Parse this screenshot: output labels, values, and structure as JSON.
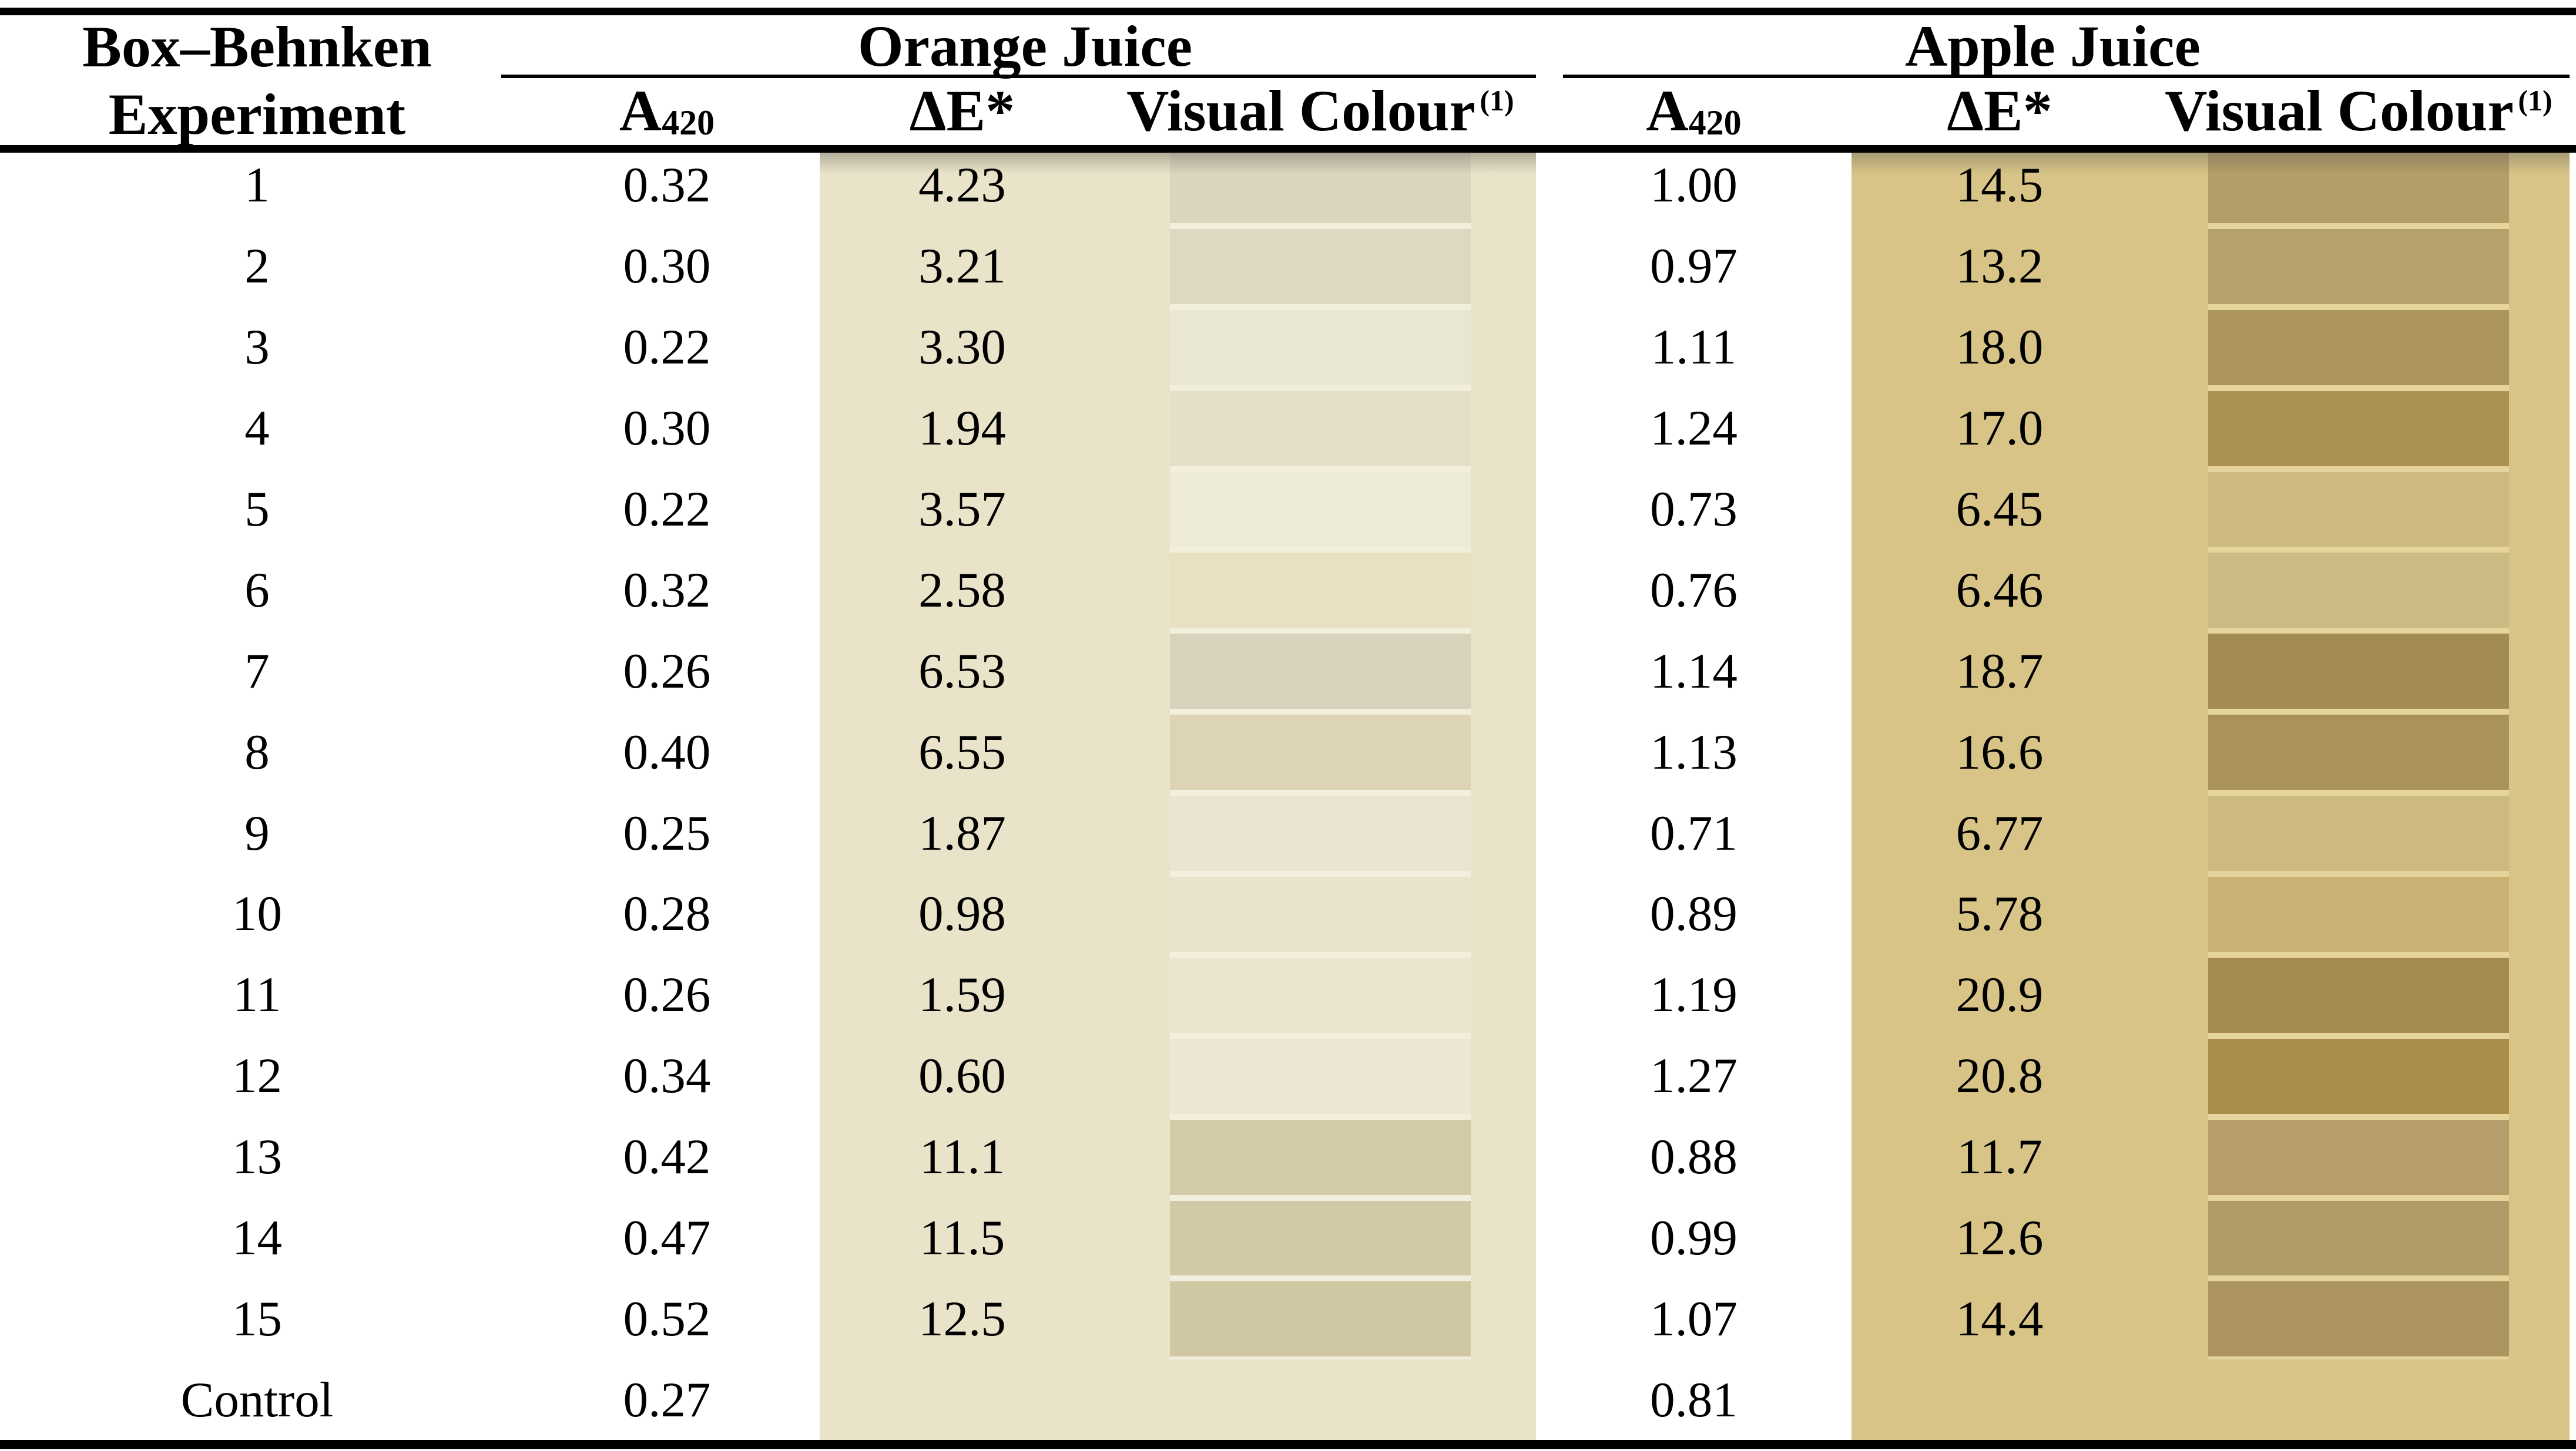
{
  "table": {
    "col1_line1": "Box–Behnken",
    "col1_line2": "Experiment",
    "groups": [
      {
        "label": "Orange Juice"
      },
      {
        "label": "Apple Juice"
      }
    ],
    "sub": {
      "a420_base": "A",
      "a420_sub": "420",
      "delta_e": "ΔE*",
      "visual": "Visual Colour",
      "visual_sup": "(1)"
    },
    "colors": {
      "oj_band": "#e9e3c9",
      "oj_gap": "#f2efdc",
      "aj_band": "#d7c486",
      "aj_gap": "#e5d59c"
    },
    "rows": [
      {
        "exp": "1",
        "oj_a420": "0.32",
        "oj_de": "4.23",
        "oj_color": "#dbd5be",
        "aj_a420": "1.00",
        "aj_de": "14.5",
        "aj_color": "#b39d68"
      },
      {
        "exp": "2",
        "oj_a420": "0.30",
        "oj_de": "3.21",
        "oj_color": "#ded8c3",
        "aj_a420": "0.97",
        "aj_de": "13.2",
        "aj_color": "#b6a16d"
      },
      {
        "exp": "3",
        "oj_a420": "0.22",
        "oj_de": "3.30",
        "oj_color": "#e9e6d2",
        "aj_a420": "1.11",
        "aj_de": "18.0",
        "aj_color": "#ab945e"
      },
      {
        "exp": "4",
        "oj_a420": "0.30",
        "oj_de": "1.94",
        "oj_color": "#e4dfc8",
        "aj_a420": "1.24",
        "aj_de": "17.0",
        "aj_color": "#ac9252"
      },
      {
        "exp": "5",
        "oj_a420": "0.22",
        "oj_de": "3.57",
        "oj_color": "#edebd7",
        "aj_a420": "0.73",
        "aj_de": "6.45",
        "aj_color": "#cdb981"
      },
      {
        "exp": "6",
        "oj_a420": "0.32",
        "oj_de": "2.58",
        "oj_color": "#e7e0c1",
        "aj_a420": "0.76",
        "aj_de": "6.46",
        "aj_color": "#ccba84"
      },
      {
        "exp": "7",
        "oj_a420": "0.26",
        "oj_de": "6.53",
        "oj_color": "#d6d2bb",
        "aj_a420": "1.14",
        "aj_de": "18.7",
        "aj_color": "#a38c53"
      },
      {
        "exp": "8",
        "oj_a420": "0.40",
        "oj_de": "6.55",
        "oj_color": "#dcd4b4",
        "aj_a420": "1.13",
        "aj_de": "16.6",
        "aj_color": "#a9925b"
      },
      {
        "exp": "9",
        "oj_a420": "0.25",
        "oj_de": "1.87",
        "oj_color": "#e9e5d0",
        "aj_a420": "0.71",
        "aj_de": "6.77",
        "aj_color": "#cdb982"
      },
      {
        "exp": "10",
        "oj_a420": "0.28",
        "oj_de": "0.98",
        "oj_color": "#e8e4cc",
        "aj_a420": "0.89",
        "aj_de": "5.78",
        "aj_color": "#c9b274"
      },
      {
        "exp": "11",
        "oj_a420": "0.26",
        "oj_de": "1.59",
        "oj_color": "#e9e5cf",
        "aj_a420": "1.19",
        "aj_de": "20.9",
        "aj_color": "#a38b51"
      },
      {
        "exp": "12",
        "oj_a420": "0.34",
        "oj_de": "0.60",
        "oj_color": "#ebe7d3",
        "aj_a420": "1.27",
        "aj_de": "20.8",
        "aj_color": "#a78d49"
      },
      {
        "exp": "13",
        "oj_a420": "0.42",
        "oj_de": "11.1",
        "oj_color": "#d3caa7",
        "aj_a420": "0.88",
        "aj_de": "11.7",
        "aj_color": "#b59e6b"
      },
      {
        "exp": "14",
        "oj_a420": "0.47",
        "oj_de": "11.5",
        "oj_color": "#d2c9a6",
        "aj_a420": "0.99",
        "aj_de": "12.6",
        "aj_color": "#b19b68"
      },
      {
        "exp": "15",
        "oj_a420": "0.52",
        "oj_de": "12.5",
        "oj_color": "#d0c7a3",
        "aj_a420": "1.07",
        "aj_de": "14.4",
        "aj_color": "#ac9561"
      },
      {
        "exp": "Control",
        "oj_a420": "0.27",
        "oj_de": "",
        "oj_color": null,
        "aj_a420": "0.81",
        "aj_de": "",
        "aj_color": null
      }
    ]
  }
}
